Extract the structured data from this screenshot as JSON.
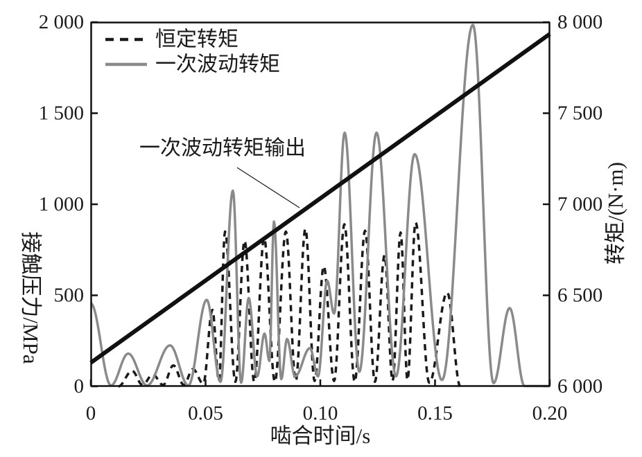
{
  "chart_data": {
    "type": "line",
    "title": "",
    "xlabel": "啮合时间/s",
    "ylabel_left": "接触压力/MPa",
    "ylabel_right": "转矩/(N·m)",
    "xlim": [
      0,
      0.2
    ],
    "ylim_left": [
      0,
      2000
    ],
    "ylim_right": [
      6000,
      8000
    ],
    "grid": false,
    "legend_position": "top-left-inside",
    "xticks": [
      {
        "v": 0,
        "label": "0"
      },
      {
        "v": 0.05,
        "label": "0.05"
      },
      {
        "v": 0.1,
        "label": "0.10"
      },
      {
        "v": 0.15,
        "label": "0.15"
      },
      {
        "v": 0.2,
        "label": "0.20"
      }
    ],
    "yticks_left": [
      {
        "v": 2000,
        "label": "2 000"
      },
      {
        "v": 1500,
        "label": "1 500"
      },
      {
        "v": 1000,
        "label": "1 000"
      },
      {
        "v": 500,
        "label": "500"
      },
      {
        "v": 0,
        "label": "0"
      }
    ],
    "yticks_right": [
      {
        "v": 8000,
        "label": "8 000"
      },
      {
        "v": 7500,
        "label": "7 500"
      },
      {
        "v": 7000,
        "label": "7 000"
      },
      {
        "v": 6500,
        "label": "6 500"
      },
      {
        "v": 6000,
        "label": "6 000"
      }
    ],
    "series": [
      {
        "name": "恒定转矩",
        "axis": "left",
        "style": "dashed",
        "color": "#1a1a1a",
        "line_width": 3.5,
        "extrema": [
          [
            0.012,
            0
          ],
          [
            0.018,
            85
          ],
          [
            0.0225,
            8
          ],
          [
            0.027,
            65
          ],
          [
            0.0315,
            8
          ],
          [
            0.036,
            115
          ],
          [
            0.0405,
            8
          ],
          [
            0.0445,
            95
          ],
          [
            0.049,
            15
          ],
          [
            0.053,
            420
          ],
          [
            0.0558,
            30
          ],
          [
            0.0585,
            850
          ],
          [
            0.063,
            25
          ],
          [
            0.067,
            800
          ],
          [
            0.0712,
            25
          ],
          [
            0.0755,
            815
          ],
          [
            0.0802,
            25
          ],
          [
            0.085,
            850
          ],
          [
            0.0893,
            30
          ],
          [
            0.0935,
            865
          ],
          [
            0.0975,
            30
          ],
          [
            0.1015,
            660
          ],
          [
            0.106,
            30
          ],
          [
            0.1105,
            890
          ],
          [
            0.115,
            25
          ],
          [
            0.1195,
            855
          ],
          [
            0.1238,
            25
          ],
          [
            0.128,
            720
          ],
          [
            0.1315,
            30
          ],
          [
            0.135,
            845
          ],
          [
            0.138,
            35
          ],
          [
            0.1415,
            900
          ],
          [
            0.1475,
            20
          ],
          [
            0.1553,
            515
          ],
          [
            0.161,
            0
          ]
        ]
      },
      {
        "name": "一次波动转矩",
        "axis": "left",
        "style": "solid",
        "color": "#8a8a8a",
        "line_width": 3.5,
        "extrema": [
          [
            0,
            455
          ],
          [
            0.0088,
            5
          ],
          [
            0.0163,
            180
          ],
          [
            0.0245,
            5
          ],
          [
            0.0345,
            225
          ],
          [
            0.0425,
            5
          ],
          [
            0.0505,
            475
          ],
          [
            0.0565,
            25
          ],
          [
            0.0619,
            1075
          ],
          [
            0.0655,
            20
          ],
          [
            0.0688,
            485
          ],
          [
            0.0725,
            55
          ],
          [
            0.0757,
            290
          ],
          [
            0.0778,
            140
          ],
          [
            0.0798,
            905
          ],
          [
            0.083,
            40
          ],
          [
            0.0855,
            260
          ],
          [
            0.089,
            55
          ],
          [
            0.0955,
            210
          ],
          [
            0.099,
            55
          ],
          [
            0.103,
            580
          ],
          [
            0.106,
            400
          ],
          [
            0.1106,
            1393
          ],
          [
            0.117,
            80
          ],
          [
            0.1245,
            1393
          ],
          [
            0.133,
            55
          ],
          [
            0.1411,
            1275
          ],
          [
            0.153,
            35
          ],
          [
            0.1665,
            1985
          ],
          [
            0.1755,
            18
          ],
          [
            0.1825,
            430
          ],
          [
            0.189,
            2
          ],
          [
            0.2,
            2
          ]
        ]
      },
      {
        "name": "一次波动转矩输出",
        "axis": "right",
        "style": "solid-thick",
        "color": "#111111",
        "line_width": 6,
        "points": [
          [
            0,
            6130
          ],
          [
            0.2,
            7935
          ]
        ]
      }
    ],
    "legend": {
      "entries": [
        {
          "label": "恒定转矩",
          "style": "dashed",
          "color": "#1a1a1a"
        },
        {
          "label": "一次波动转矩",
          "style": "solid",
          "color": "#8a8a8a"
        }
      ]
    },
    "annotation": {
      "text": "一次波动转矩输出",
      "points_to_series": "一次波动转矩输出"
    }
  }
}
